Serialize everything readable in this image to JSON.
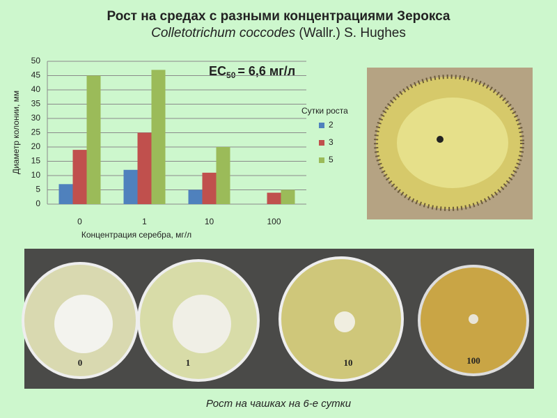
{
  "slide": {
    "title": "Рост на средах с разными концентрациями Зерокса",
    "subtitle": {
      "italic": "Colletotrichum coccodes",
      "rest": "(Wallr.) S. Hughes"
    },
    "annotation": {
      "main": "EC",
      "sub": "50",
      "rest": "= 6,6 мг/л"
    },
    "plates": [
      "0",
      "1",
      "10",
      "100"
    ],
    "caption": "Рост на чашках на 6-е сутки"
  },
  "chart_data": {
    "type": "bar",
    "categories": [
      "0",
      "1",
      "10",
      "100"
    ],
    "series": [
      {
        "name": "2",
        "color": "#4f81bd",
        "values": [
          7,
          12,
          5,
          0
        ]
      },
      {
        "name": "3",
        "color": "#c0504d",
        "values": [
          19,
          25,
          11,
          4
        ]
      },
      {
        "name": "5",
        "color": "#9bbb59",
        "values": [
          45,
          47,
          20,
          5
        ]
      }
    ],
    "legend_title": "Сутки роста",
    "xlabel": "Концентрация серебра, мг/л",
    "ylabel": "Диаметр колонии, мм",
    "ylim": [
      0,
      50
    ],
    "yticks": [
      0,
      5,
      10,
      15,
      20,
      25,
      30,
      35,
      40,
      45,
      50
    ],
    "grid": true,
    "legend": "right"
  }
}
